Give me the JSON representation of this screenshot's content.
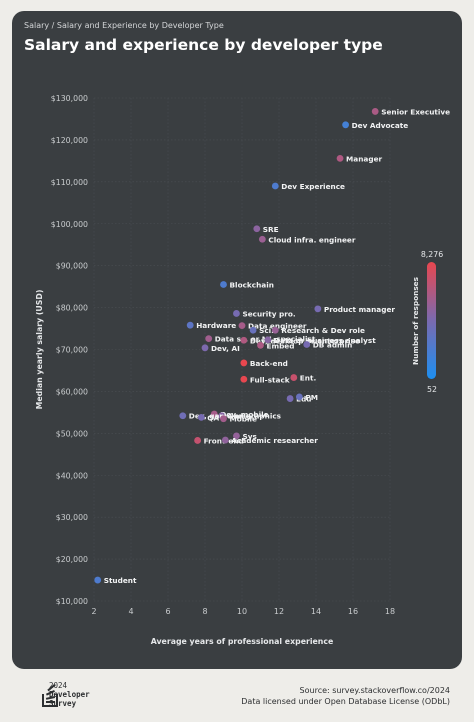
{
  "breadcrumb": "Salary / Salary and Experience by Developer Type",
  "title": "Salary and experience by developer type",
  "footer": {
    "logo_year": "2024",
    "logo_line1": "Developer",
    "logo_line2": "Survey",
    "source": "Source: survey.stackoverflow.co/2024",
    "license": "Data licensed under Open Database License (ODbL)"
  },
  "colors": {
    "background": "#eeede9",
    "panel": "#3a3e41",
    "low": "#1d8ff0",
    "high": "#e8474f"
  },
  "chart_data": {
    "type": "scatter",
    "xlabel": "Average years of professional experience",
    "ylabel": "Median yearly salary (USD)",
    "xlim": [
      2,
      18
    ],
    "ylim": [
      10000,
      130000
    ],
    "x_ticks": [
      2,
      4,
      6,
      8,
      10,
      12,
      14,
      16,
      18
    ],
    "y_ticks": [
      10000,
      20000,
      30000,
      40000,
      50000,
      60000,
      70000,
      80000,
      90000,
      100000,
      110000,
      120000,
      130000
    ],
    "y_tick_labels": [
      "$10,000",
      "$20,000",
      "$30,000",
      "$40,000",
      "$50,000",
      "$60,000",
      "$70,000",
      "$80,000",
      "$90,000",
      "$100,000",
      "$110,000",
      "$120,000",
      "$130,000"
    ],
    "grid": true,
    "colorbar": {
      "label": "Number of responses",
      "min": 52,
      "max": 8276
    },
    "points": [
      {
        "label": "Senior Executive",
        "x": 17.2,
        "y": 126800,
        "responses": 2000
      },
      {
        "label": "Dev Advocate",
        "x": 15.6,
        "y": 123600,
        "responses": 150
      },
      {
        "label": "Manager",
        "x": 15.3,
        "y": 115600,
        "responses": 2200
      },
      {
        "label": "Dev Experience",
        "x": 11.8,
        "y": 109000,
        "responses": 200
      },
      {
        "label": "SRE",
        "x": 10.8,
        "y": 98800,
        "responses": 1000
      },
      {
        "label": "Cloud infra. engineer",
        "x": 11.1,
        "y": 96300,
        "responses": 1400
      },
      {
        "label": "Blockchain",
        "x": 9.0,
        "y": 85500,
        "responses": 200
      },
      {
        "label": "Product manager",
        "x": 14.1,
        "y": 79700,
        "responses": 600
      },
      {
        "label": "Security pro.",
        "x": 9.7,
        "y": 78600,
        "responses": 600
      },
      {
        "label": "Hardware",
        "x": 7.2,
        "y": 75800,
        "responses": 300
      },
      {
        "label": "Data engineer",
        "x": 10.0,
        "y": 75700,
        "responses": 1800
      },
      {
        "label": "Sci.",
        "x": 10.6,
        "y": 74600,
        "responses": 400
      },
      {
        "label": "Research & Dev role",
        "x": 11.8,
        "y": 74600,
        "responses": 1300
      },
      {
        "label": "Data sc. or ML specialist",
        "x": 8.2,
        "y": 72600,
        "responses": 1600
      },
      {
        "label": "Dev, desktop or enterprise",
        "x": 10.1,
        "y": 72200,
        "responses": 2300
      },
      {
        "label": "Data or business analyst",
        "x": 11.4,
        "y": 72300,
        "responses": 900
      },
      {
        "label": "Embed",
        "x": 11.0,
        "y": 71000,
        "responses": 2100
      },
      {
        "label": "DB admin",
        "x": 13.5,
        "y": 71200,
        "responses": 600
      },
      {
        "label": "Dev, AI",
        "x": 8.0,
        "y": 70400,
        "responses": 700
      },
      {
        "label": "Back-end",
        "x": 10.1,
        "y": 66800,
        "responses": 8276
      },
      {
        "label": "Ent.",
        "x": 12.8,
        "y": 63300,
        "responses": 3900
      },
      {
        "label": "Full-stack",
        "x": 10.1,
        "y": 62900,
        "responses": 8000
      },
      {
        "label": "Edu",
        "x": 12.6,
        "y": 58300,
        "responses": 600
      },
      {
        "label": "PM",
        "x": 13.1,
        "y": 58700,
        "responses": 400
      },
      {
        "label": "Dev, mobile",
        "x": 8.5,
        "y": 54600,
        "responses": 1800
      },
      {
        "label": "Game",
        "x": 8.9,
        "y": 54200,
        "responses": 900
      },
      {
        "label": "Dev, game or graphics",
        "x": 6.8,
        "y": 54200,
        "responses": 500
      },
      {
        "label": "QA",
        "x": 7.8,
        "y": 53800,
        "responses": 600
      },
      {
        "label": "Mobile",
        "x": 9.0,
        "y": 53500,
        "responses": 1700
      },
      {
        "label": "Sys",
        "x": 9.7,
        "y": 49400,
        "responses": 1200
      },
      {
        "label": "Front-end",
        "x": 7.6,
        "y": 48300,
        "responses": 3600
      },
      {
        "label": "Academic researcher",
        "x": 9.1,
        "y": 48400,
        "responses": 1100
      },
      {
        "label": "Student",
        "x": 2.2,
        "y": 15000,
        "responses": 200
      }
    ]
  }
}
